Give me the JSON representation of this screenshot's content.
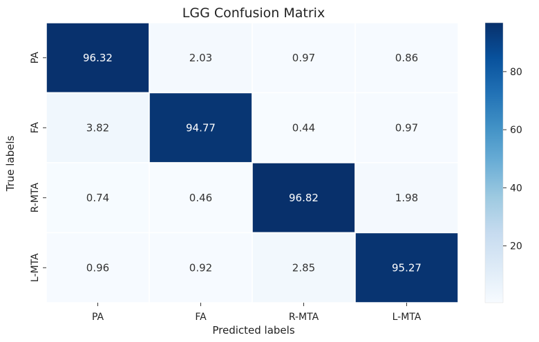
{
  "chart_data": {
    "type": "heatmap",
    "title": "LGG Confusion Matrix",
    "xlabel": "Predicted labels",
    "ylabel": "True labels",
    "x_categories": [
      "PA",
      "FA",
      "R-MTA",
      "L-MTA"
    ],
    "y_categories": [
      "PA",
      "FA",
      "R-MTA",
      "L-MTA"
    ],
    "values": [
      [
        96.32,
        2.03,
        0.97,
        0.86
      ],
      [
        3.82,
        94.77,
        0.44,
        0.97
      ],
      [
        0.74,
        0.46,
        96.82,
        1.98
      ],
      [
        0.96,
        0.92,
        2.85,
        95.27
      ]
    ],
    "value_labels": [
      [
        "96.32",
        "2.03",
        "0.97",
        "0.86"
      ],
      [
        "3.82",
        "94.77",
        "0.44",
        "0.97"
      ],
      [
        "0.74",
        "0.46",
        "96.82",
        "1.98"
      ],
      [
        "0.96",
        "0.92",
        "2.85",
        "95.27"
      ]
    ],
    "colormap": "Blues",
    "colorbar": {
      "range": [
        0.44,
        96.82
      ],
      "ticks": [
        20,
        40,
        60,
        80
      ],
      "tick_labels": [
        "20",
        "40",
        "60",
        "80"
      ]
    },
    "colors": {
      "low": "#f7fbff",
      "high": "#08306b",
      "light_text": "#ffffff",
      "dark_text": "#333333"
    }
  }
}
